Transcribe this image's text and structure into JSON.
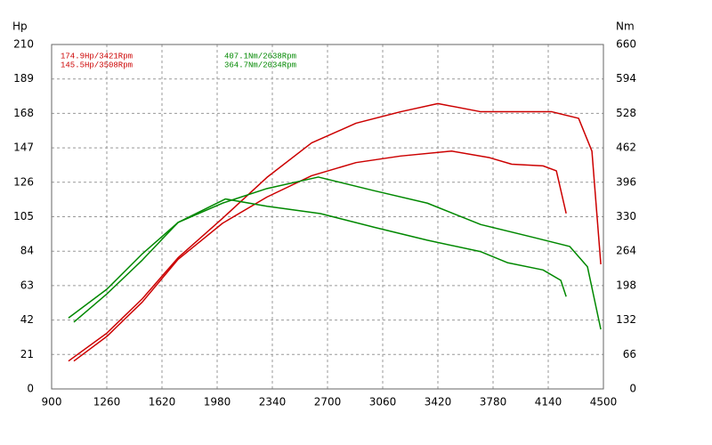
{
  "chart_data": {
    "type": "line",
    "y_label": "Hp",
    "y2_label": "Nm",
    "annotations": [
      {
        "text": "174.9Hp/3421Rpm",
        "color": "#cc0000"
      },
      {
        "text": "145.5Hp/3508Rpm",
        "color": "#cc0000"
      },
      {
        "text": "407.1Nm/2638Rpm",
        "color": "#008800"
      },
      {
        "text": "364.7Nm/2034Rpm",
        "color": "#008800"
      }
    ],
    "xlim": [
      900,
      4500
    ],
    "xticks": [
      900,
      1260,
      1620,
      1980,
      2340,
      2700,
      3060,
      3420,
      3780,
      4140,
      4500
    ],
    "ylim": [
      0,
      210
    ],
    "yticks": [
      0,
      21,
      42,
      63,
      84,
      105,
      126,
      147,
      168,
      189,
      210
    ],
    "y2lim": [
      0,
      660
    ],
    "y2ticks": [
      0,
      66,
      132,
      198,
      264,
      330,
      396,
      462,
      528,
      594,
      660
    ],
    "grid": true,
    "series": [
      {
        "color": "#cc0000",
        "x": [
          1010,
          1260,
          1492,
          1725,
          2015,
          2305,
          2596,
          2886,
          3177,
          3420,
          3700,
          4048,
          4163,
          4338,
          4425,
          4483
        ],
        "values": [
          17,
          34,
          55,
          80,
          104,
          129,
          150,
          162,
          169,
          174,
          169,
          169,
          169,
          165,
          145,
          76
        ]
      },
      {
        "color": "#cc0000",
        "x": [
          1045,
          1260,
          1492,
          1725,
          2015,
          2305,
          2596,
          2886,
          3177,
          3510,
          3757,
          3902,
          4106,
          4193,
          4257
        ],
        "values": [
          17,
          32,
          53,
          79,
          101,
          117,
          130,
          138,
          142,
          145,
          141,
          137,
          136,
          133,
          107
        ]
      },
      {
        "color": "#008800",
        "axis": "y2",
        "x": [
          1010,
          1260,
          1492,
          1725,
          2015,
          2305,
          2640,
          3002,
          3351,
          3700,
          4048,
          4280,
          4396,
          4483
        ],
        "values": [
          136,
          191,
          259,
          319,
          356,
          384,
          406,
          380,
          356,
          315,
          290,
          273,
          234,
          114
        ]
      },
      {
        "color": "#008800",
        "axis": "y2",
        "x": [
          1045,
          1260,
          1492,
          1725,
          2034,
          2305,
          2654,
          3002,
          3351,
          3700,
          3873,
          4106,
          4222,
          4257
        ],
        "values": [
          128,
          182,
          247,
          319,
          364,
          350,
          336,
          310,
          285,
          263,
          242,
          228,
          208,
          177
        ]
      }
    ]
  }
}
